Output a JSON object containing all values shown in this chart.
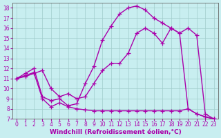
{
  "background_color": "#c8eef0",
  "grid_color": "#a0cccc",
  "line_color": "#aa00aa",
  "marker": "+",
  "markersize": 4,
  "linewidth": 1.0,
  "xlim": [
    -0.5,
    23.5
  ],
  "ylim": [
    7,
    18.5
  ],
  "xlabel": "Windchill (Refroidissement éolien,°C)",
  "xlabel_fontsize": 6.5,
  "tick_fontsize": 5.5,
  "xticks": [
    0,
    1,
    2,
    3,
    4,
    5,
    6,
    7,
    8,
    9,
    10,
    11,
    12,
    13,
    14,
    15,
    16,
    17,
    18,
    19,
    20,
    21,
    22,
    23
  ],
  "yticks": [
    7,
    8,
    9,
    10,
    11,
    12,
    13,
    14,
    15,
    16,
    17,
    18
  ],
  "line1_x": [
    0,
    1,
    2,
    3,
    4,
    5,
    6,
    7,
    8,
    9,
    10,
    11,
    12,
    13,
    14,
    15,
    16,
    17,
    18,
    19,
    20,
    21,
    22,
    23
  ],
  "line1_y": [
    11.0,
    11.3,
    11.6,
    9.0,
    8.2,
    8.6,
    8.2,
    8.0,
    7.9,
    7.8,
    7.8,
    7.8,
    7.8,
    7.8,
    7.8,
    7.8,
    7.8,
    7.8,
    7.8,
    7.8,
    8.0,
    7.5,
    7.2,
    7.0
  ],
  "line2_x": [
    0,
    1,
    2,
    3,
    4,
    5,
    6,
    7,
    8,
    9,
    10,
    11,
    12,
    13,
    14,
    15,
    16,
    17,
    18,
    19,
    20,
    21,
    22,
    23
  ],
  "line2_y": [
    11.0,
    11.5,
    12.0,
    9.2,
    8.8,
    9.0,
    8.3,
    8.5,
    10.5,
    12.2,
    14.8,
    16.2,
    17.4,
    18.0,
    18.2,
    17.8,
    17.0,
    16.5,
    16.0,
    15.5,
    16.0,
    15.3,
    7.5,
    7.0
  ],
  "line3_x": [
    0,
    1,
    2,
    3,
    4,
    5,
    6,
    7,
    8,
    9,
    10,
    11,
    12,
    13,
    14,
    15,
    16,
    17,
    18,
    19,
    20,
    21,
    22,
    23
  ],
  "line3_y": [
    11.0,
    11.2,
    11.5,
    11.8,
    10.0,
    9.2,
    9.5,
    9.0,
    9.2,
    10.5,
    11.8,
    12.5,
    12.5,
    13.5,
    15.5,
    16.0,
    15.5,
    14.5,
    16.0,
    15.5,
    8.0,
    7.5,
    7.2,
    7.0
  ]
}
